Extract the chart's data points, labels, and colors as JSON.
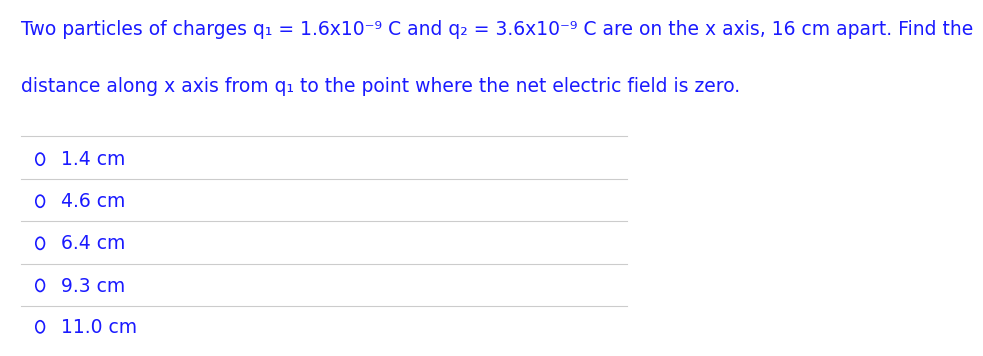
{
  "title_line1": "Two particles of charges q₁ = 1.6x10⁻⁹ C and q₂ = 3.6x10⁻⁹ C are on the x axis, 16 cm apart. Find the",
  "title_line2": "distance along x axis from q₁ to the point where the net electric field is zero.",
  "options": [
    "1.4 cm",
    "4.6 cm",
    "6.4 cm",
    "9.3 cm",
    "11.0 cm"
  ],
  "bg_color": "#ffffff",
  "text_color": "#1a1aff",
  "line_color": "#cccccc",
  "font_size_title": 13.5,
  "font_size_options": 13.5,
  "fig_width": 9.02,
  "fig_height": 3.45
}
